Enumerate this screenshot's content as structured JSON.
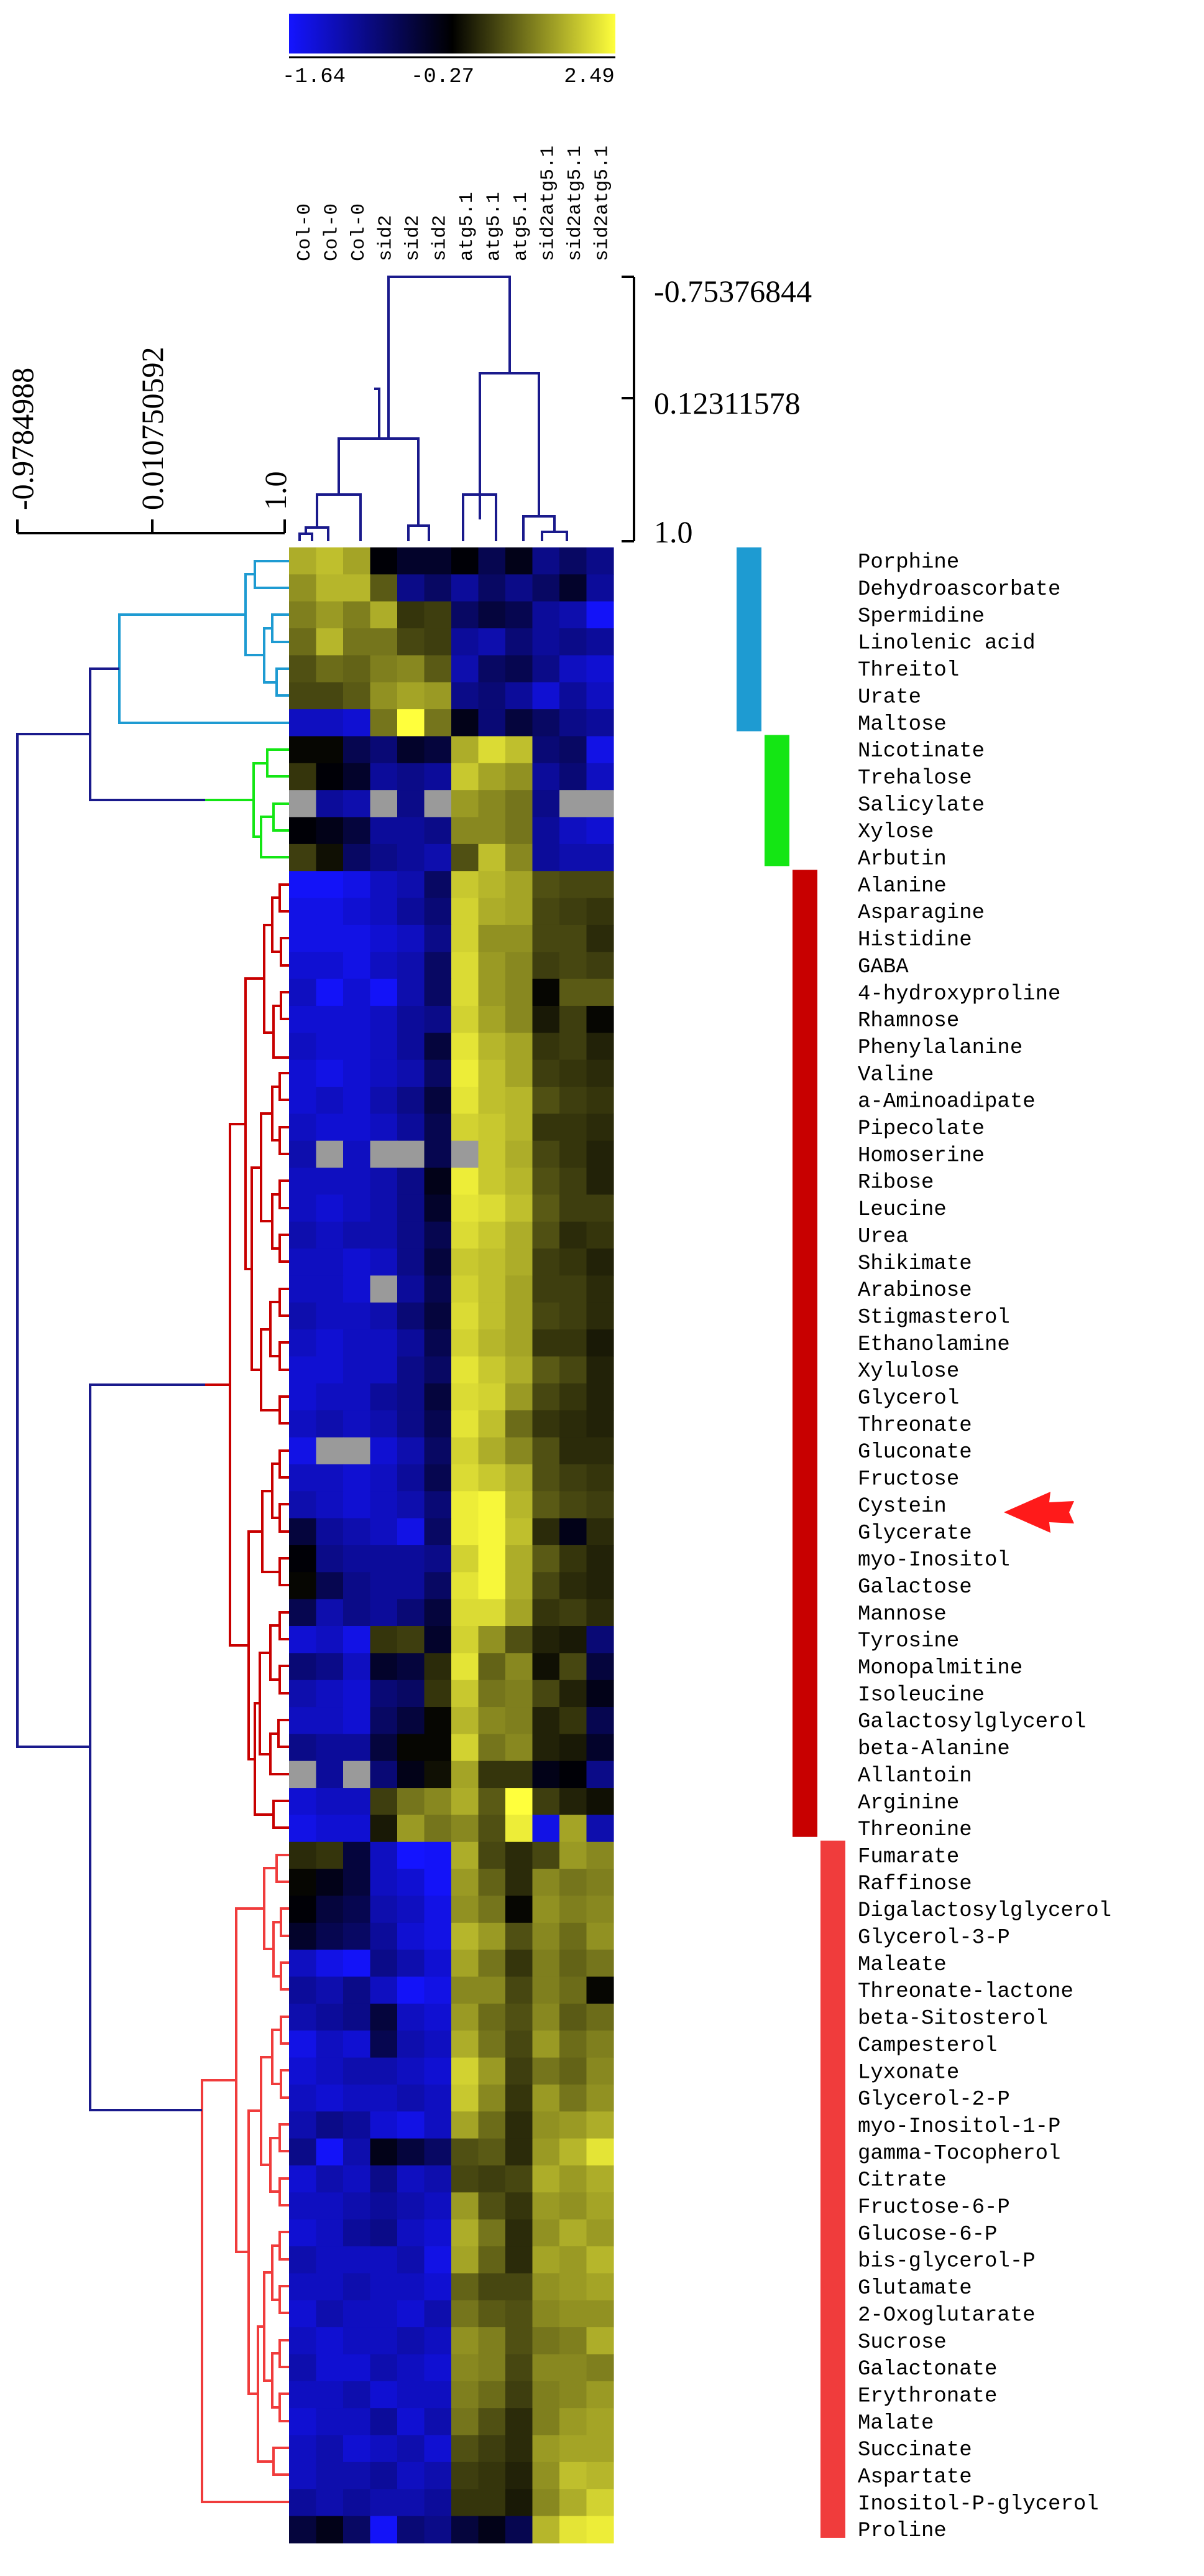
{
  "chart_data": {
    "type": "heatmap",
    "color_scale": {
      "low": -1.64,
      "mid": -0.27,
      "high": 2.49,
      "tick_labels": [
        "-1.64",
        "-0.27",
        "2.49"
      ],
      "colors": [
        "#1414ff",
        "#000000",
        "#ffff3c"
      ],
      "missing_color": "#9a9a9a"
    },
    "columns": [
      "Col-0",
      "Col-0",
      "Col-0",
      "sid2",
      "sid2",
      "sid2",
      "atg5.1",
      "atg5.1",
      "atg5.1",
      "sid2atg5.1",
      "sid2atg5.1",
      "sid2atg5.1"
    ],
    "rows": [
      "Porphine",
      "Dehydroascorbate",
      "Spermidine",
      "Linolenic acid",
      "Threitol",
      "Urate",
      "Maltose",
      "Nicotinate",
      "Trehalose",
      "Salicylate",
      "Xylose",
      "Arbutin",
      "Alanine",
      "Asparagine",
      "Histidine",
      "GABA",
      "4-hydroxyproline",
      "Rhamnose",
      "Phenylalanine",
      "Valine",
      "a-Aminoadipate",
      "Pipecolate",
      "Homoserine",
      "Ribose",
      "Leucine",
      "Urea",
      "Shikimate",
      "Arabinose",
      "Stigmasterol",
      "Ethanolamine",
      "Xylulose",
      "Glycerol",
      "Threonate",
      "Gluconate",
      "Fructose",
      "Cystein",
      "Glycerate",
      "myo-Inositol",
      "Galactose",
      "Mannose",
      "Tyrosine",
      "Monopalmitine",
      "Isoleucine",
      "Galactosylglycerol",
      "beta-Alanine",
      "Allantoin",
      "Arginine",
      "Threonine",
      "Fumarate",
      "Raffinose",
      "Digalactosylglycerol",
      "Glycerol-3-P",
      "Maleate",
      "Threonate-lactone",
      "beta-Sitosterol",
      "Campesterol",
      "Lyxonate",
      "Glycerol-2-P",
      "myo-Inositol-1-P",
      "gamma-Tocopherol",
      "Citrate",
      "Fructose-6-P",
      "Glucose-6-P",
      "bis-glycerol-P",
      "Glutamate",
      "2-Oxoglutarate",
      "Sucrose",
      "Galactonate",
      "Erythronate",
      "Malate",
      "Succinate",
      "Aspartate",
      "Inositol-P-glycerol",
      "Proline"
    ],
    "clusters": [
      {
        "rows": [
          0,
          6
        ],
        "color": "#1e9bd2"
      },
      {
        "rows": [
          7,
          11
        ],
        "color": "#14e614"
      },
      {
        "rows": [
          12,
          47
        ],
        "color": "#c80000"
      },
      {
        "rows": [
          48,
          73
        ],
        "color": "#f03c3c"
      }
    ],
    "values": [
      [
        1.6,
        1.8,
        1.5,
        -0.3,
        -0.5,
        -0.5,
        -0.3,
        -0.7,
        -0.4,
        -1.0,
        -0.8,
        -1.0
      ],
      [
        1.3,
        1.7,
        1.7,
        0.7,
        -1.0,
        -0.8,
        -1.1,
        -0.8,
        -1.0,
        -0.8,
        -0.5,
        -1.1
      ],
      [
        1.1,
        1.4,
        1.1,
        1.6,
        0.3,
        0.4,
        -0.8,
        -0.6,
        -0.7,
        -1.1,
        -1.2,
        -1.6
      ],
      [
        0.9,
        1.7,
        1.0,
        1.0,
        0.5,
        0.4,
        -1.1,
        -1.2,
        -0.9,
        -1.1,
        -1.0,
        -1.1
      ],
      [
        0.6,
        0.9,
        0.8,
        1.1,
        1.2,
        0.7,
        -1.2,
        -0.8,
        -0.7,
        -1.0,
        -1.3,
        -1.4
      ],
      [
        0.5,
        0.5,
        0.7,
        1.3,
        1.5,
        1.4,
        -1.0,
        -0.9,
        -1.1,
        -1.4,
        -1.1,
        -1.3
      ],
      [
        -1.3,
        -1.3,
        -1.4,
        1.0,
        2.49,
        1.0,
        -0.4,
        -0.9,
        -0.6,
        -0.8,
        -1.0,
        -1.1
      ],
      [
        -0.2,
        -0.2,
        -0.7,
        -0.9,
        -0.5,
        -0.6,
        1.6,
        2.1,
        1.8,
        -0.9,
        -0.8,
        -1.5
      ],
      [
        0.3,
        -0.3,
        -0.5,
        -1.1,
        -1.0,
        -1.1,
        1.9,
        1.5,
        1.3,
        -1.1,
        -0.9,
        -1.3
      ],
      [
        null,
        -1.1,
        -1.2,
        null,
        -1.0,
        null,
        1.4,
        1.2,
        1.0,
        -1.0,
        null,
        null
      ],
      [
        -0.3,
        -0.4,
        -0.6,
        -1.1,
        -1.1,
        -1.0,
        1.2,
        1.2,
        1.0,
        -1.1,
        -1.3,
        -1.4
      ],
      [
        0.4,
        -0.1,
        -0.8,
        -1.0,
        -1.1,
        -1.2,
        0.6,
        1.8,
        1.2,
        -1.1,
        -1.2,
        -1.2
      ],
      [
        -1.6,
        -1.6,
        -1.5,
        -1.3,
        -1.2,
        -0.8,
        1.9,
        1.7,
        1.5,
        0.6,
        0.5,
        0.5
      ],
      [
        -1.5,
        -1.5,
        -1.4,
        -1.3,
        -1.1,
        -0.9,
        2.0,
        1.6,
        1.5,
        0.5,
        0.4,
        0.3
      ],
      [
        -1.5,
        -1.5,
        -1.5,
        -1.4,
        -1.3,
        -1.0,
        2.0,
        1.3,
        1.3,
        0.5,
        0.5,
        0.2
      ],
      [
        -1.4,
        -1.4,
        -1.5,
        -1.3,
        -1.2,
        -0.8,
        2.1,
        1.4,
        1.2,
        0.4,
        0.5,
        0.4
      ],
      [
        -1.3,
        -1.6,
        -1.4,
        -1.6,
        -1.2,
        -0.8,
        2.1,
        1.4,
        1.2,
        -0.2,
        0.7,
        0.7
      ],
      [
        -1.4,
        -1.4,
        -1.4,
        -1.3,
        -1.1,
        -1.0,
        2.0,
        1.5,
        1.2,
        0.0,
        0.4,
        -0.2
      ],
      [
        -1.3,
        -1.4,
        -1.4,
        -1.3,
        -1.1,
        -0.6,
        2.2,
        1.7,
        1.5,
        0.3,
        0.4,
        0.1
      ],
      [
        -1.4,
        -1.5,
        -1.4,
        -1.3,
        -1.2,
        -0.8,
        2.3,
        1.8,
        1.5,
        0.4,
        0.3,
        0.2
      ],
      [
        -1.4,
        -1.3,
        -1.4,
        -1.2,
        -1.0,
        -0.6,
        2.2,
        1.8,
        1.7,
        0.6,
        0.4,
        0.3
      ],
      [
        -1.3,
        -1.4,
        -1.4,
        -1.3,
        -1.1,
        -0.7,
        2.0,
        1.9,
        1.7,
        0.3,
        0.3,
        0.2
      ],
      [
        -1.2,
        null,
        -1.3,
        null,
        null,
        -0.7,
        null,
        1.9,
        1.6,
        0.5,
        0.3,
        0.1
      ],
      [
        -1.3,
        -1.3,
        -1.3,
        -1.2,
        -1.0,
        -0.4,
        2.3,
        1.9,
        1.7,
        0.6,
        0.4,
        0.1
      ],
      [
        -1.3,
        -1.4,
        -1.3,
        -1.2,
        -1.0,
        -0.5,
        2.2,
        2.1,
        1.8,
        0.7,
        0.4,
        0.4
      ],
      [
        -1.2,
        -1.3,
        -1.2,
        -1.2,
        -1.0,
        -0.7,
        2.1,
        1.9,
        1.6,
        0.6,
        0.2,
        0.3
      ],
      [
        -1.3,
        -1.3,
        -1.4,
        -1.3,
        -1.0,
        -0.6,
        1.9,
        1.8,
        1.6,
        0.4,
        0.3,
        0.1
      ],
      [
        -1.3,
        -1.3,
        -1.4,
        null,
        -1.1,
        -0.7,
        2.0,
        1.8,
        1.5,
        0.4,
        0.4,
        0.2
      ],
      [
        -1.2,
        -1.3,
        -1.3,
        -1.2,
        -0.9,
        -0.6,
        2.1,
        1.8,
        1.5,
        0.5,
        0.4,
        0.2
      ],
      [
        -1.3,
        -1.4,
        -1.3,
        -1.3,
        -1.1,
        -0.7,
        2.0,
        1.7,
        1.5,
        0.3,
        0.3,
        0.0
      ],
      [
        -1.4,
        -1.4,
        -1.3,
        -1.3,
        -1.0,
        -0.8,
        2.2,
        1.9,
        1.6,
        0.7,
        0.5,
        0.1
      ],
      [
        -1.4,
        -1.3,
        -1.3,
        -1.1,
        -1.0,
        -0.6,
        2.1,
        2.0,
        1.4,
        0.5,
        0.3,
        0.1
      ],
      [
        -1.3,
        -1.2,
        -1.3,
        -1.2,
        -1.0,
        -0.7,
        2.2,
        1.8,
        0.9,
        0.3,
        0.2,
        0.1
      ],
      [
        -1.5,
        null,
        null,
        -1.4,
        -1.2,
        -0.8,
        2.0,
        1.6,
        1.2,
        0.6,
        0.2,
        0.2
      ],
      [
        -1.3,
        -1.3,
        -1.4,
        -1.3,
        -1.1,
        -0.7,
        2.1,
        1.9,
        1.6,
        0.6,
        0.4,
        0.3
      ],
      [
        -1.2,
        -1.3,
        -1.4,
        -1.3,
        -1.2,
        -0.9,
        2.3,
        2.4,
        1.7,
        0.7,
        0.5,
        0.4
      ],
      [
        -0.6,
        -1.1,
        -1.2,
        -1.3,
        -1.5,
        -0.8,
        2.3,
        2.4,
        1.8,
        0.2,
        -0.4,
        0.2
      ],
      [
        -0.3,
        -1.0,
        -1.1,
        -1.1,
        -1.1,
        -1.0,
        2.0,
        2.4,
        1.6,
        0.7,
        0.3,
        0.1
      ],
      [
        -0.2,
        -0.7,
        -1.0,
        -1.1,
        -1.1,
        -0.8,
        2.2,
        2.4,
        1.6,
        0.5,
        0.2,
        0.1
      ],
      [
        -0.7,
        -1.2,
        -1.0,
        -1.1,
        -0.9,
        -0.6,
        2.1,
        2.1,
        1.5,
        0.3,
        0.4,
        0.2
      ],
      [
        -1.4,
        -1.3,
        -1.5,
        0.3,
        0.4,
        -0.5,
        2.0,
        1.3,
        0.6,
        0.1,
        0.0,
        -0.9
      ],
      [
        -0.9,
        -1.0,
        -1.3,
        -0.5,
        -0.6,
        0.2,
        2.2,
        0.8,
        1.2,
        -0.1,
        0.5,
        -0.6
      ],
      [
        -1.2,
        -1.3,
        -1.4,
        -0.9,
        -0.8,
        0.3,
        1.9,
        1.0,
        1.1,
        0.5,
        0.1,
        -0.4
      ],
      [
        -1.3,
        -1.3,
        -1.4,
        -0.8,
        -0.6,
        -0.2,
        1.7,
        1.2,
        1.1,
        0.1,
        0.3,
        -0.7
      ],
      [
        -1.0,
        -1.1,
        -1.1,
        -0.6,
        -0.2,
        -0.2,
        2.0,
        1.0,
        1.2,
        0.1,
        0.0,
        -0.5
      ],
      [
        null,
        -1.1,
        null,
        -0.9,
        -0.4,
        -0.1,
        1.5,
        0.3,
        0.3,
        -0.4,
        -0.3,
        -1.0
      ],
      [
        -1.4,
        -1.3,
        -1.3,
        0.4,
        1.0,
        1.2,
        1.6,
        0.7,
        2.49,
        0.4,
        0.1,
        -0.1
      ],
      [
        -1.5,
        -1.4,
        -1.4,
        0.0,
        1.4,
        1.0,
        1.2,
        0.6,
        2.3,
        -1.5,
        1.5,
        -1.2
      ],
      [
        0.2,
        0.3,
        -0.6,
        -1.3,
        -1.64,
        -1.6,
        1.6,
        0.5,
        0.2,
        0.5,
        1.4,
        1.2
      ],
      [
        -0.2,
        -0.4,
        -0.6,
        -1.3,
        -1.4,
        -1.6,
        1.4,
        0.8,
        0.2,
        1.2,
        1.0,
        1.1
      ],
      [
        -0.3,
        -0.6,
        -0.7,
        -1.2,
        -1.3,
        -1.5,
        1.3,
        1.0,
        -0.2,
        1.3,
        1.1,
        1.2
      ],
      [
        -0.5,
        -0.7,
        -0.8,
        -1.1,
        -1.4,
        -1.5,
        1.7,
        1.4,
        0.6,
        1.2,
        0.9,
        1.3
      ],
      [
        -1.3,
        -1.5,
        -1.6,
        -1.0,
        -1.2,
        -1.4,
        1.5,
        1.0,
        0.3,
        1.1,
        0.8,
        1.0
      ],
      [
        -1.1,
        -1.2,
        -1.0,
        -1.3,
        -1.6,
        -1.5,
        1.2,
        1.2,
        0.5,
        1.1,
        0.9,
        -0.2
      ],
      [
        -1.2,
        -1.1,
        -1.0,
        -0.6,
        -1.3,
        -1.4,
        1.4,
        0.9,
        0.6,
        1.2,
        0.7,
        0.9
      ],
      [
        -1.5,
        -1.3,
        -1.4,
        -0.7,
        -1.2,
        -1.3,
        1.6,
        1.0,
        0.5,
        1.4,
        0.9,
        1.1
      ],
      [
        -1.4,
        -1.3,
        -1.2,
        -1.2,
        -1.3,
        -1.4,
        2.0,
        1.4,
        0.4,
        1.0,
        0.8,
        1.2
      ],
      [
        -1.3,
        -1.4,
        -1.3,
        -1.3,
        -1.2,
        -1.3,
        1.9,
        1.2,
        0.3,
        1.4,
        1.0,
        1.3
      ],
      [
        -1.2,
        -1.0,
        -1.1,
        -1.4,
        -1.5,
        -1.3,
        1.5,
        0.9,
        0.2,
        1.3,
        1.4,
        1.6
      ],
      [
        -1.0,
        -1.6,
        -1.2,
        -0.4,
        -0.6,
        -0.8,
        0.6,
        0.7,
        0.2,
        1.4,
        1.7,
        2.2
      ],
      [
        -1.4,
        -1.2,
        -1.3,
        -1.0,
        -1.3,
        -1.2,
        0.5,
        0.4,
        0.5,
        1.6,
        1.4,
        1.6
      ],
      [
        -1.3,
        -1.3,
        -1.2,
        -1.1,
        -1.2,
        -1.3,
        1.4,
        0.6,
        0.3,
        1.4,
        1.3,
        1.5
      ],
      [
        -1.4,
        -1.3,
        -1.1,
        -1.0,
        -1.3,
        -1.4,
        1.6,
        1.0,
        0.2,
        1.3,
        1.6,
        1.4
      ],
      [
        -1.2,
        -1.3,
        -1.3,
        -1.3,
        -1.2,
        -1.5,
        1.5,
        0.8,
        0.2,
        1.5,
        1.4,
        1.7
      ],
      [
        -1.3,
        -1.3,
        -1.2,
        -1.3,
        -1.3,
        -1.4,
        0.8,
        0.5,
        0.5,
        1.3,
        1.4,
        1.5
      ],
      [
        -1.4,
        -1.2,
        -1.3,
        -1.3,
        -1.4,
        -1.2,
        1.0,
        0.7,
        0.6,
        1.2,
        1.3,
        1.3
      ],
      [
        -1.3,
        -1.4,
        -1.3,
        -1.3,
        -1.2,
        -1.3,
        1.3,
        1.1,
        0.6,
        1.0,
        1.1,
        1.6
      ],
      [
        -1.2,
        -1.4,
        -1.4,
        -1.2,
        -1.3,
        -1.4,
        1.2,
        1.1,
        0.5,
        1.2,
        1.2,
        1.1
      ],
      [
        -1.3,
        -1.3,
        -1.2,
        -1.4,
        -1.3,
        -1.3,
        1.1,
        0.9,
        0.4,
        1.1,
        1.2,
        1.4
      ],
      [
        -1.4,
        -1.3,
        -1.3,
        -1.1,
        -1.4,
        -1.2,
        1.0,
        0.6,
        0.2,
        1.1,
        1.4,
        1.5
      ],
      [
        -1.3,
        -1.2,
        -1.4,
        -1.3,
        -1.2,
        -1.4,
        0.6,
        0.4,
        0.2,
        1.4,
        1.5,
        1.5
      ],
      [
        -1.3,
        -1.2,
        -1.2,
        -1.1,
        -1.3,
        -1.2,
        0.4,
        0.3,
        0.1,
        1.3,
        1.8,
        1.7
      ],
      [
        -1.1,
        -1.2,
        -1.1,
        -1.2,
        -1.2,
        -1.1,
        0.3,
        0.3,
        0.0,
        1.2,
        1.6,
        2.0
      ],
      [
        -0.6,
        -0.4,
        -0.8,
        -1.6,
        -0.9,
        -1.0,
        -0.6,
        -0.4,
        -0.7,
        1.7,
        2.2,
        2.3
      ]
    ],
    "column_dendrogram_axis": {
      "tick_labels": [
        "-0.75376844",
        "0.12311578",
        "1.0"
      ]
    },
    "row_dendrogram_axis": {
      "tick_labels": [
        "-0.9784988",
        "0.010750592",
        "1.0"
      ]
    },
    "highlighted_row": "Cystein"
  }
}
